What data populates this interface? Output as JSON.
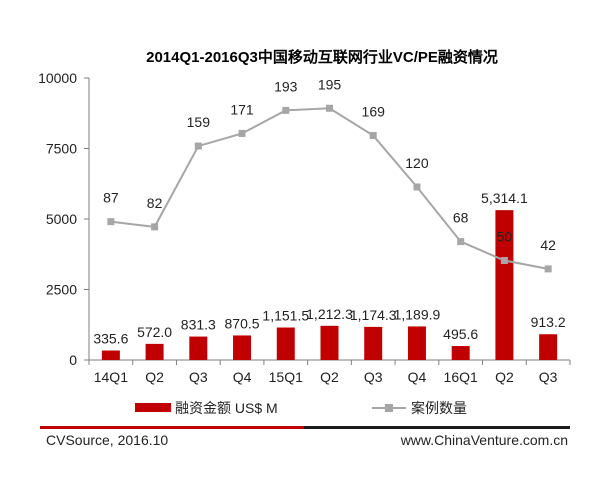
{
  "chart_data": {
    "type": "bar+line",
    "title": "2014Q1-2016Q3中国移动互联网行业VC/PE融资情况",
    "categories": [
      "14Q1",
      "Q2",
      "Q3",
      "Q4",
      "15Q1",
      "Q2",
      "Q3",
      "Q4",
      "16Q1",
      "Q2",
      "Q3"
    ],
    "y_ticks": [
      "0",
      "2500",
      "5000",
      "7500",
      "10000"
    ],
    "ylim": [
      0,
      10000
    ],
    "series": [
      {
        "name": "融资金额 US$ M",
        "type": "bar",
        "color": "#c00000",
        "values": [
          335.6,
          572.0,
          831.3,
          870.5,
          1151.5,
          1212.3,
          1174.3,
          1189.9,
          495.6,
          5314.1,
          913.2
        ],
        "labels": [
          "335.6",
          "572.0",
          "831.3",
          "870.5",
          "1,151.5",
          "1,212.3",
          "1,174.3",
          "1,189.9",
          "495.6",
          "5,314.1",
          "913.2"
        ]
      },
      {
        "name": "案例数量",
        "type": "line",
        "color": "#a6a6a6",
        "values": [
          87,
          82,
          159,
          171,
          193,
          195,
          169,
          120,
          68,
          50,
          42
        ],
        "labels": [
          "87",
          "82",
          "159",
          "171",
          "193",
          "195",
          "169",
          "120",
          "68",
          "50",
          "42"
        ]
      }
    ],
    "legend_position": "bottom",
    "grid": false
  },
  "footer": {
    "source": "CVSource, 2016.10",
    "website": "www.ChinaVenture.com.cn"
  }
}
